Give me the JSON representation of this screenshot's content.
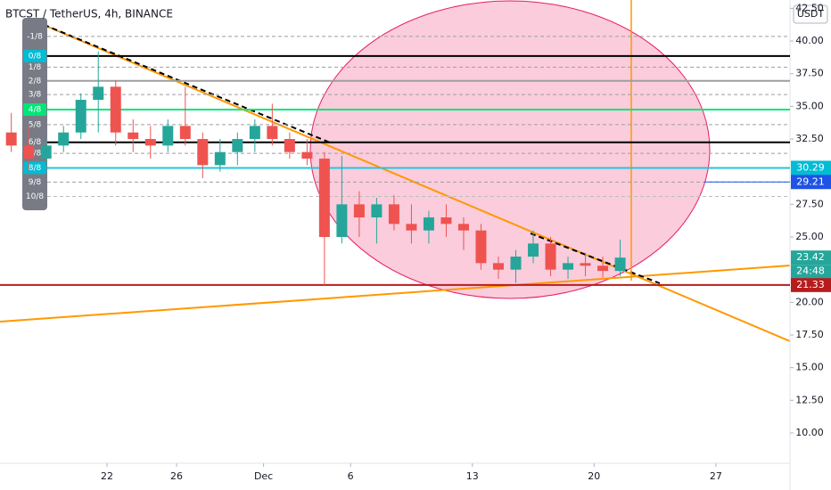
{
  "chart_data": {
    "type": "candlestick",
    "title": "BTCST / TetherUS, 4h, BINANCE",
    "currency": "USDT",
    "x": [
      16.5,
      17.5,
      18.5,
      19.5,
      20.5,
      21.5,
      22.5,
      23.5,
      24.5,
      25.5,
      26.5,
      27.5,
      28.5,
      29.5,
      30.5,
      31.5,
      32.5,
      33.5,
      34.5,
      35.5,
      36.5,
      37.5,
      38.5,
      39.5,
      40.5,
      41.5,
      42.5,
      43.5,
      44.5,
      45.5,
      46.5,
      47.5,
      48.5,
      49.5,
      50.5,
      51.5
    ],
    "open": [
      33.0,
      32.0,
      31.0,
      32.0,
      33.0,
      35.5,
      36.5,
      33.0,
      32.5,
      32.0,
      33.5,
      32.5,
      30.5,
      31.5,
      32.5,
      33.5,
      32.5,
      31.5,
      31.0,
      25.0,
      27.5,
      26.5,
      27.5,
      26.0,
      25.5,
      26.5,
      26.0,
      25.5,
      23.0,
      22.5,
      23.5,
      24.5,
      22.5,
      23.0,
      22.8,
      22.4
    ],
    "high": [
      34.5,
      33.5,
      32.5,
      33.5,
      36.0,
      39.2,
      37.0,
      34.0,
      33.5,
      34.0,
      36.5,
      33.0,
      32.5,
      33.0,
      34.0,
      35.2,
      33.0,
      32.5,
      31.5,
      31.2,
      28.5,
      28.0,
      28.2,
      27.5,
      27.0,
      27.5,
      26.5,
      26.0,
      23.5,
      24.0,
      25.5,
      25.0,
      23.5,
      23.8,
      23.5,
      24.8
    ],
    "low": [
      31.5,
      30.0,
      30.5,
      31.5,
      32.5,
      33.0,
      32.0,
      31.5,
      31.0,
      31.5,
      32.0,
      29.5,
      30.0,
      30.5,
      31.5,
      32.0,
      31.0,
      30.5,
      21.3,
      24.5,
      25.0,
      24.5,
      25.5,
      24.5,
      24.5,
      25.0,
      24.0,
      22.5,
      21.8,
      21.5,
      23.0,
      22.0,
      21.8,
      22.0,
      21.9,
      22.0
    ],
    "close": [
      32.0,
      31.0,
      32.0,
      33.0,
      35.5,
      36.5,
      33.0,
      32.5,
      32.0,
      33.5,
      32.5,
      30.5,
      31.5,
      32.5,
      33.5,
      32.5,
      31.5,
      31.0,
      25.0,
      27.5,
      26.5,
      27.5,
      26.0,
      25.5,
      26.5,
      26.0,
      25.5,
      23.0,
      22.5,
      23.5,
      24.5,
      22.5,
      23.0,
      22.8,
      22.4,
      23.42
    ],
    "up_color": "#26a69a",
    "down_color": "#ef5350",
    "xlim": [
      15.85,
      61.26
    ],
    "xticks": [
      {
        "value": 22,
        "label": "22"
      },
      {
        "value": 26,
        "label": "26"
      },
      {
        "value": 31,
        "label": "Dec"
      },
      {
        "value": 36,
        "label": "6"
      },
      {
        "value": 43,
        "label": "13"
      },
      {
        "value": 50,
        "label": "20"
      },
      {
        "value": 57,
        "label": "27"
      }
    ],
    "ylim": [
      7.68,
      43.14
    ],
    "yticks": [
      {
        "value": 10,
        "label": "10.00"
      },
      {
        "value": 12.5,
        "label": "12.50"
      },
      {
        "value": 15,
        "label": "15.00"
      },
      {
        "value": 17.5,
        "label": "17.50"
      },
      {
        "value": 20,
        "label": "20.00"
      },
      {
        "value": 25,
        "label": "25.00"
      },
      {
        "value": 27.5,
        "label": "27.50"
      },
      {
        "value": 32.5,
        "label": "32.50"
      },
      {
        "value": 35,
        "label": "35.00"
      },
      {
        "value": 37.5,
        "label": "37.50"
      },
      {
        "value": 40,
        "label": "40.00"
      },
      {
        "value": 42.5,
        "label": "42.50"
      }
    ],
    "levels": [
      {
        "label": "-1/8",
        "value": 40.35,
        "color": "#9e9e9e",
        "dashed": true
      },
      {
        "label": "0/8",
        "value": 38.85,
        "color": "#000000",
        "dashed": false,
        "tag": "#00bcd4"
      },
      {
        "label": "1/8",
        "value": 38.0,
        "color": "#9e9e9e",
        "dashed": true
      },
      {
        "label": "2/8",
        "value": 36.95,
        "color": "#9e9e9e",
        "dashed": false
      },
      {
        "label": "3/8",
        "value": 35.9,
        "color": "#9e9e9e",
        "dashed": true
      },
      {
        "label": "4/8",
        "value": 34.75,
        "color": "#00e676",
        "dashed": false,
        "tag": "#00e676"
      },
      {
        "label": "5/8",
        "value": 33.6,
        "color": "#9e9e9e",
        "dashed": true
      },
      {
        "label": "6/8",
        "value": 32.25,
        "color": "#000000",
        "dashed": false
      },
      {
        "label": "7/8",
        "value": 31.4,
        "color": "#9e9e9e",
        "dashed": true
      },
      {
        "label": "8/8",
        "value": 30.29,
        "color": "#26c6da",
        "dashed": false,
        "tag": "#00bcd4"
      },
      {
        "label": "9/8",
        "value": 29.2,
        "color": "#9e9e9e",
        "dashed": true
      },
      {
        "label": "10/8",
        "value": 28.1,
        "color": "#bdbdbd",
        "dashed": true
      }
    ],
    "price_tags": [
      {
        "value": 30.29,
        "color": "#00bcd4"
      },
      {
        "value": 29.21,
        "color": "#1e53e5",
        "line": "right"
      },
      {
        "value": 23.42,
        "color": "#26a69a"
      },
      {
        "value": 21.33,
        "color": "#b71c1c",
        "line": "full"
      }
    ],
    "countdown": "24:48"
  }
}
